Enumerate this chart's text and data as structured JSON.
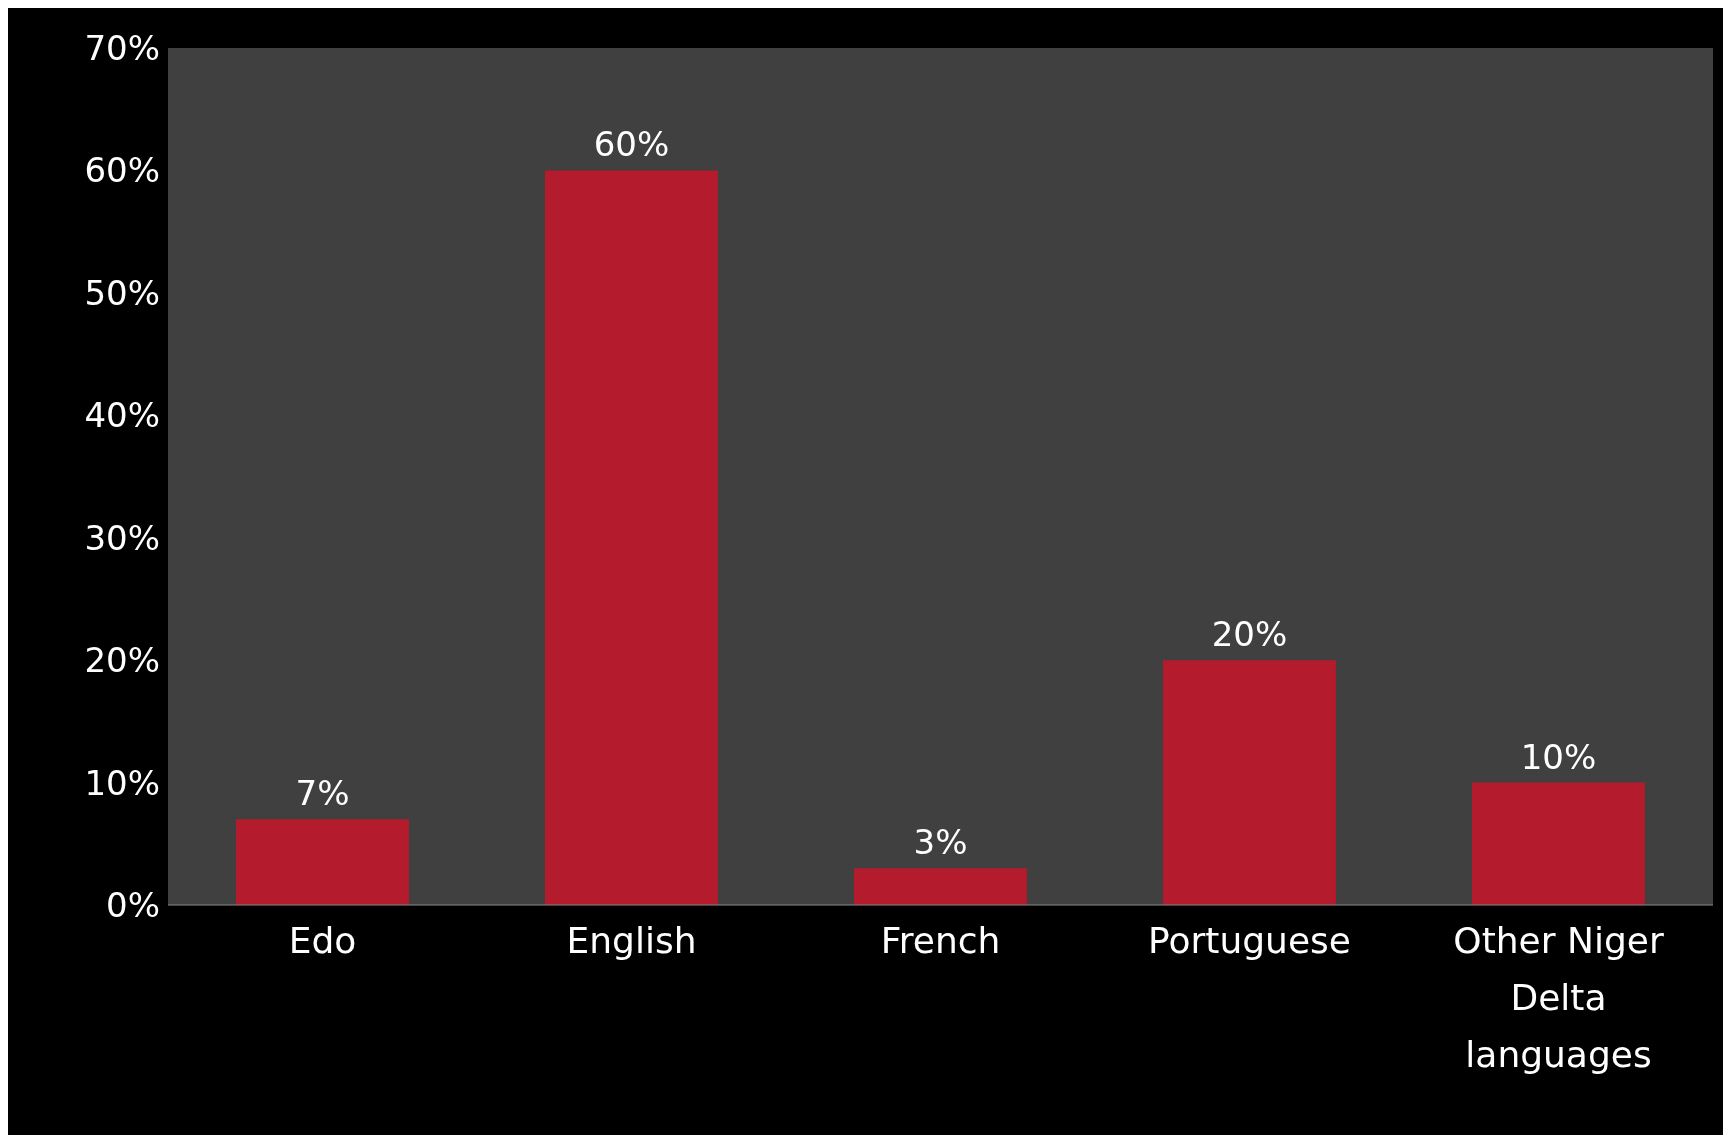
{
  "chart_data": {
    "type": "bar",
    "categories": [
      "Edo",
      "English",
      "French",
      "Portuguese",
      "Other Niger Delta languages"
    ],
    "values": [
      7,
      60,
      3,
      20,
      10
    ],
    "value_labels": [
      "7%",
      "60%",
      "3%",
      "20%",
      "10%"
    ],
    "color": "#b41b2d",
    "ylim": [
      0,
      70
    ],
    "yticks": [
      {
        "value": 0,
        "label": "0%"
      },
      {
        "value": 10,
        "label": "10%"
      },
      {
        "value": 20,
        "label": "20%"
      },
      {
        "value": 30,
        "label": "30%"
      },
      {
        "value": 40,
        "label": "40%"
      },
      {
        "value": 50,
        "label": "50%"
      },
      {
        "value": 60,
        "label": "60%"
      },
      {
        "value": 70,
        "label": "70%"
      }
    ],
    "grid": false,
    "legend": false
  }
}
